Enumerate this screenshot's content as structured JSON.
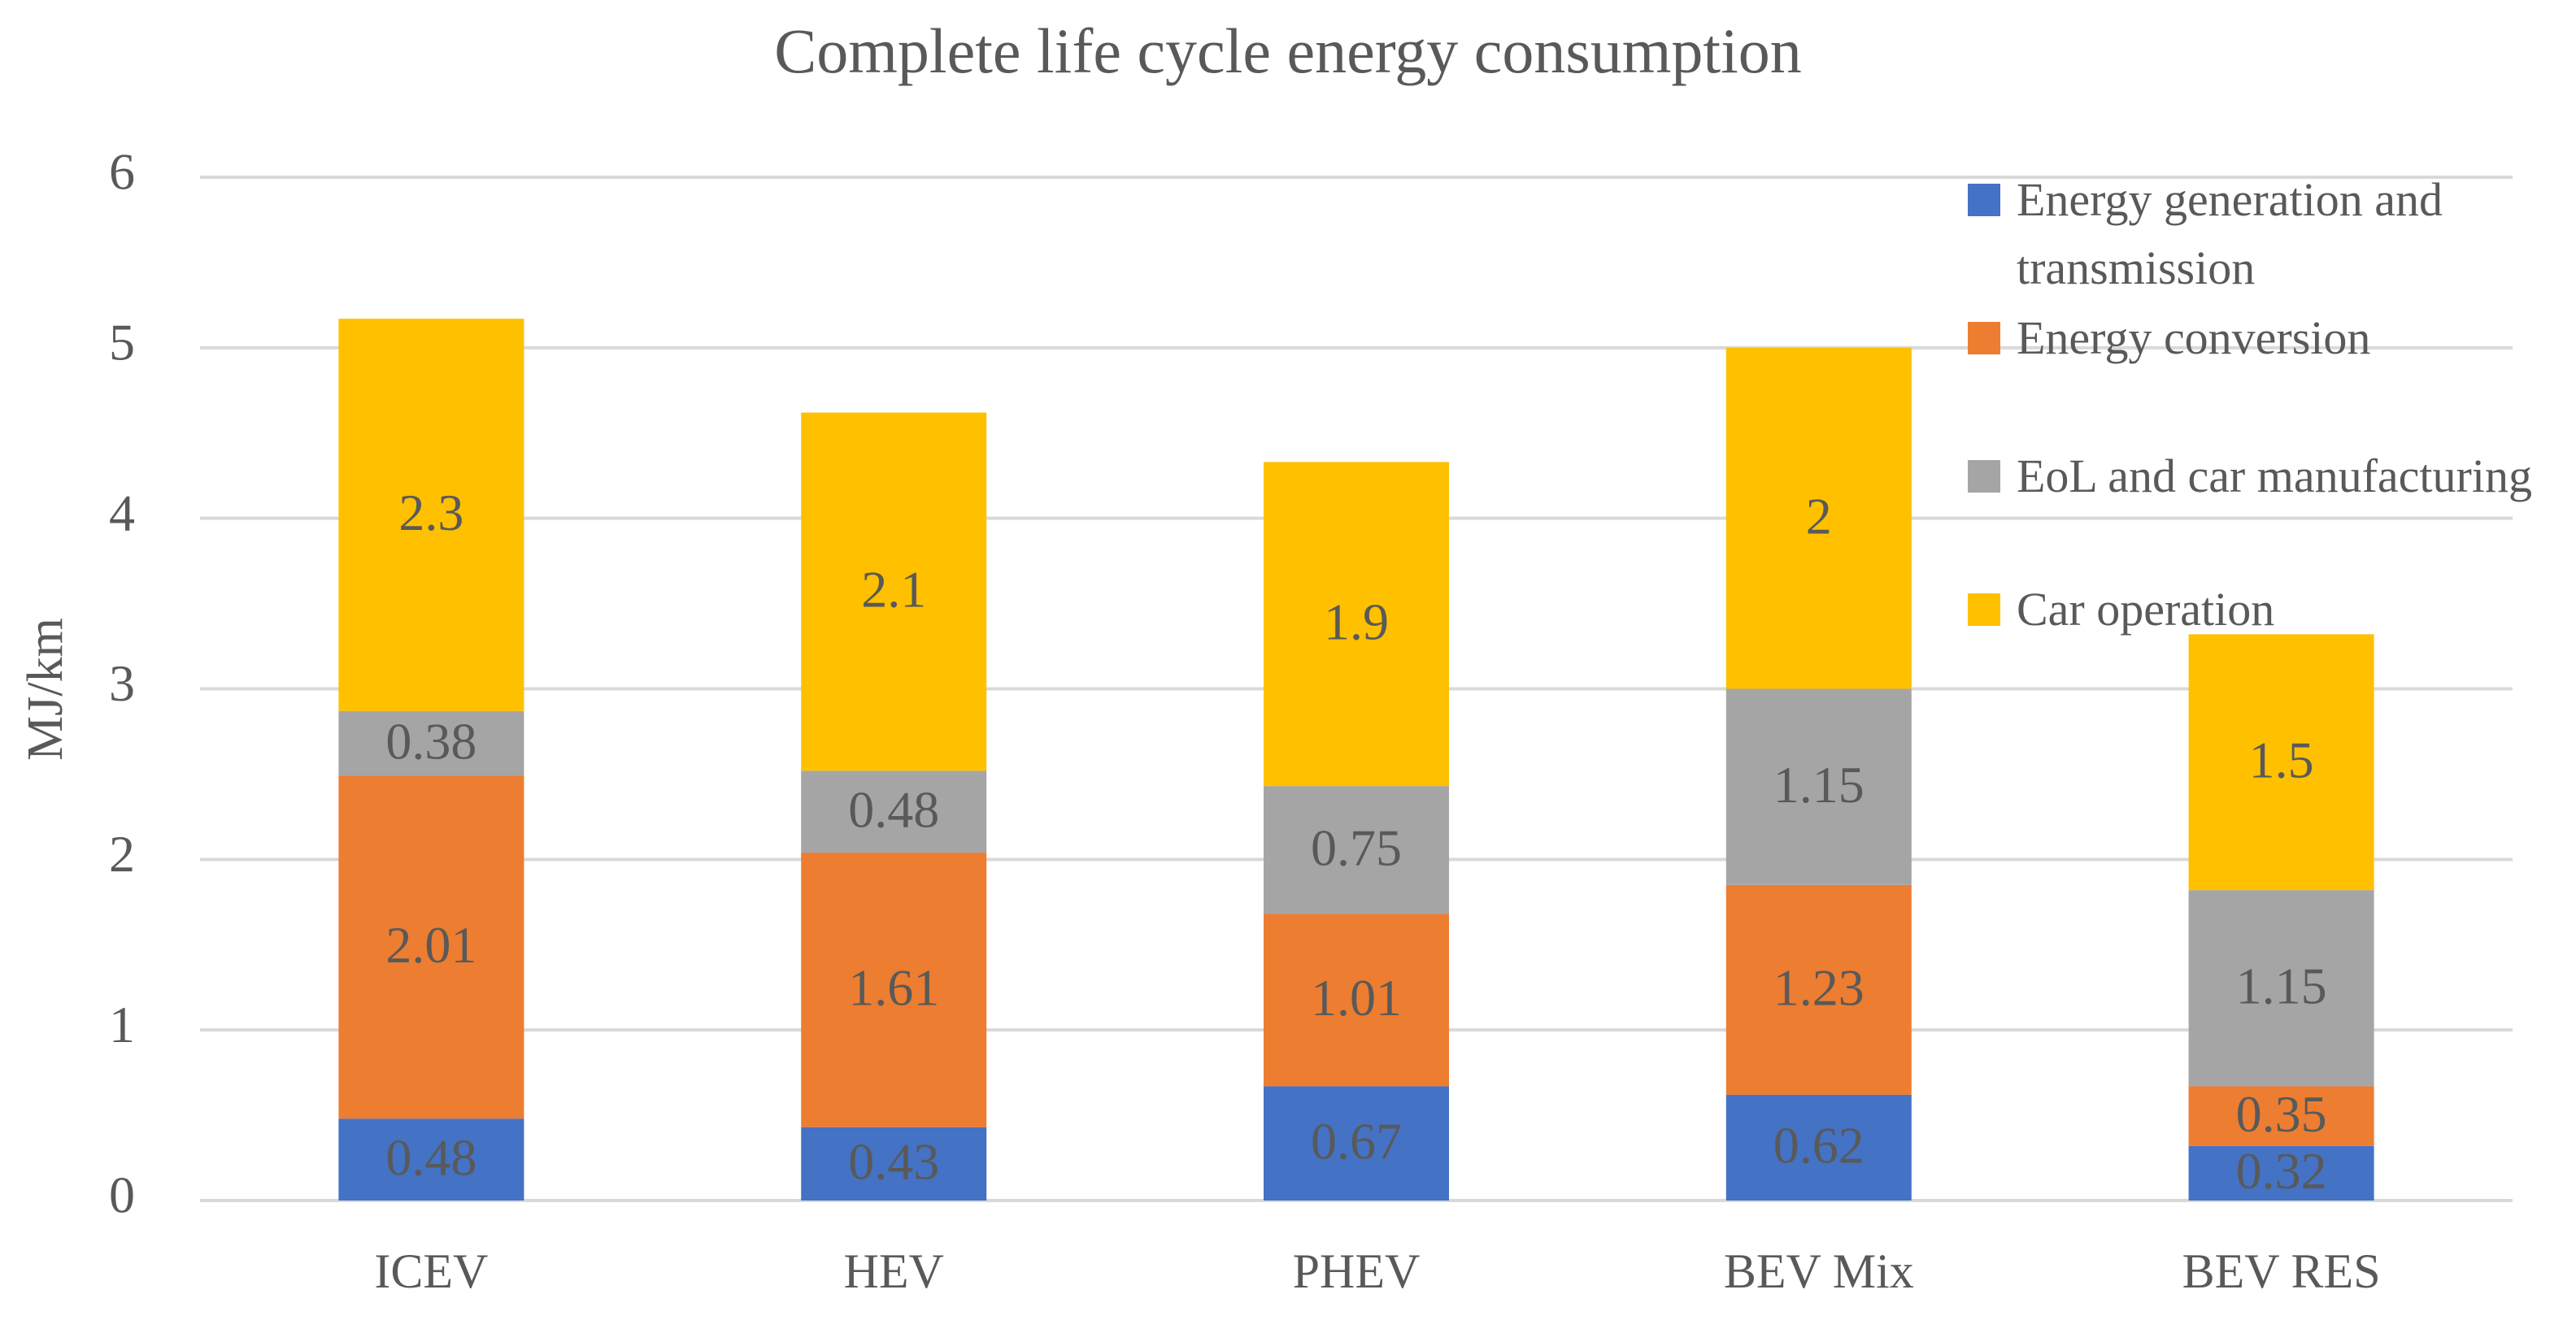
{
  "chart_data": {
    "type": "stacked_bar",
    "title": "Complete life cycle energy consumption",
    "y_label": "MJ/km",
    "categories": [
      "ICEV",
      "HEV",
      "PHEV",
      "BEV Mix",
      "BEV RES"
    ],
    "series": [
      {
        "name": "Energy generation and transmission",
        "color": "#4472c4",
        "values": [
          0.48,
          0.43,
          0.67,
          0.62,
          0.32
        ]
      },
      {
        "name": "Energy conversion",
        "color": "#ed7d31",
        "values": [
          2.01,
          1.61,
          1.01,
          1.23,
          0.35
        ]
      },
      {
        "name": "EoL and car manufacturing",
        "color": "#a5a5a5",
        "values": [
          0.38,
          0.48,
          0.75,
          1.15,
          1.15
        ]
      },
      {
        "name": "Car operation",
        "color": "#ffc000",
        "values": [
          2.3,
          2.1,
          1.9,
          2,
          1.5
        ]
      }
    ],
    "ylim": [
      0,
      6
    ],
    "yticks": [
      0,
      1,
      2,
      3,
      4,
      5,
      6
    ],
    "grid": true,
    "legend": "upper right"
  }
}
